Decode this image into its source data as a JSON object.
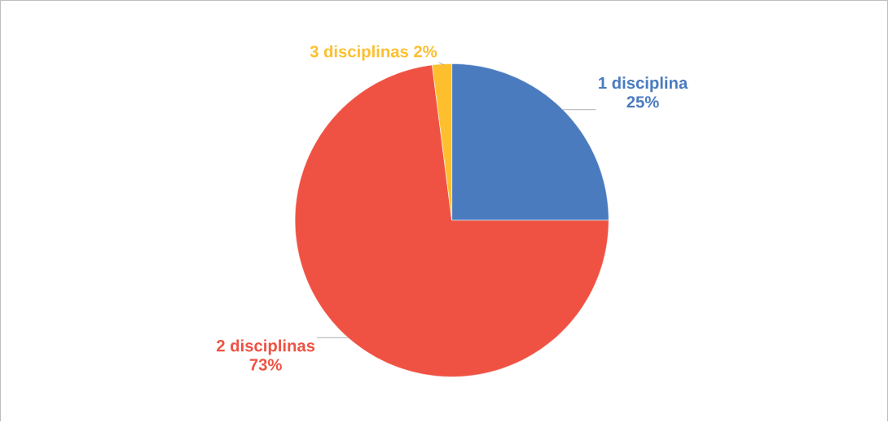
{
  "chart_data": {
    "type": "pie",
    "categories": [
      "1 disciplina",
      "2 disciplinas",
      "3 disciplinas"
    ],
    "values": [
      25,
      73,
      2
    ],
    "value_labels": [
      "25%",
      "73%",
      "2%"
    ],
    "colors": [
      "#4a7bbf",
      "#ef5243",
      "#fdbf2d"
    ]
  }
}
